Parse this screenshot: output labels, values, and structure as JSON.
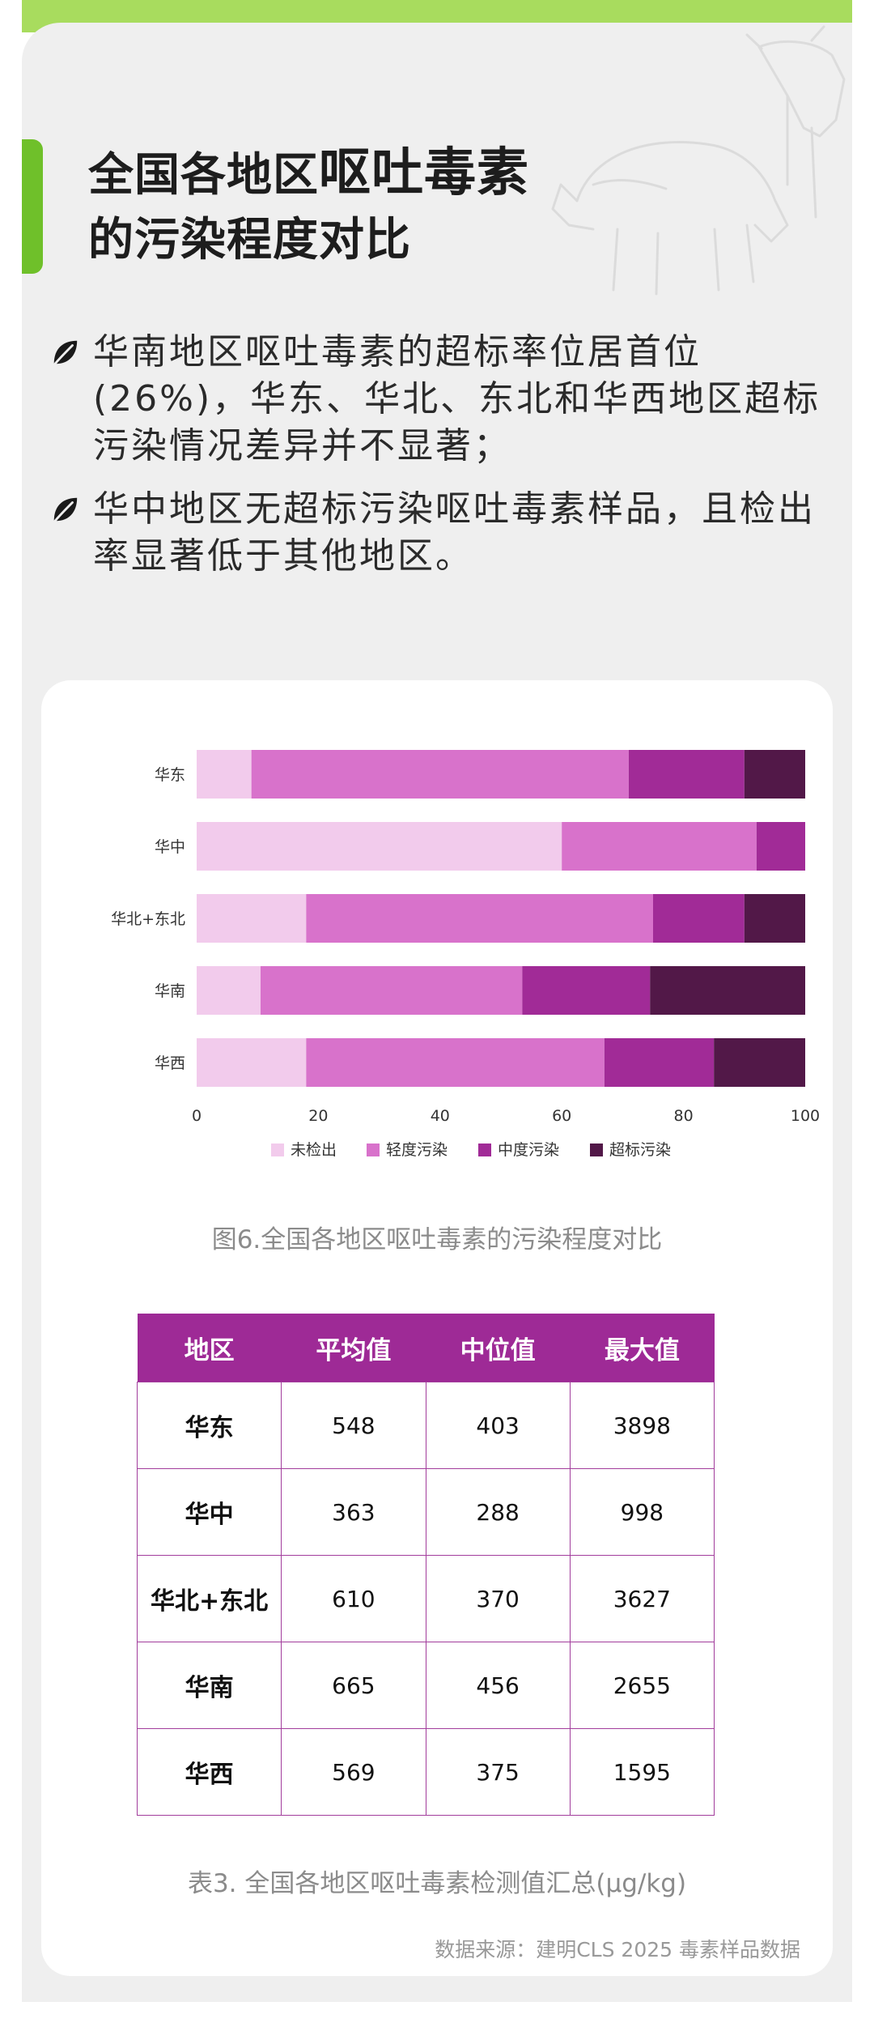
{
  "header": {
    "title_line1_plain": "全国各地区",
    "title_line1_emph": "呕吐毒素",
    "title_line2": "的污染程度对比"
  },
  "bullets": [
    "华南地区呕吐毒素的超标率位居首位(26%)，华东、华北、东北和华西地区超标污染情况差异并不显著；",
    "华中地区无超标污染呕吐毒素样品，且检出率显著低于其他地区。"
  ],
  "icons": {
    "bullet": "leaf-icon",
    "decoration": "farm-animals-illustration"
  },
  "chart_data": {
    "type": "bar",
    "orientation": "horizontal",
    "stacked": true,
    "categories": [
      "华东",
      "华中",
      "华北+东北",
      "华南",
      "华西"
    ],
    "series": [
      {
        "name": "未检出",
        "color": "#f2cbec",
        "values": [
          9,
          60,
          18,
          10.5,
          18
        ]
      },
      {
        "name": "轻度污染",
        "color": "#d872cb",
        "values": [
          62,
          32,
          57,
          43,
          49
        ]
      },
      {
        "name": "中度污染",
        "color": "#a12b97",
        "values": [
          19,
          8,
          15,
          21,
          18
        ]
      },
      {
        "name": "超标污染",
        "color": "#521848",
        "values": [
          10,
          0,
          10,
          25.5,
          15
        ]
      }
    ],
    "xlim": [
      0,
      100
    ],
    "xticks": [
      0,
      20,
      40,
      60,
      80,
      100
    ],
    "legend": "bottom",
    "grid": false,
    "caption": "图6.全国各地区呕吐毒素的污染程度对比"
  },
  "table": {
    "headers": [
      "地区",
      "平均值",
      "中位值",
      "最大值"
    ],
    "rows": [
      [
        "华东",
        "548",
        "403",
        "3898"
      ],
      [
        "华中",
        "363",
        "288",
        "998"
      ],
      [
        "华北+东北",
        "610",
        "370",
        "3627"
      ],
      [
        "华南",
        "665",
        "456",
        "2655"
      ],
      [
        "华西",
        "569",
        "375",
        "1595"
      ]
    ],
    "caption": "表3. 全国各地区呕吐毒素检测值汇总(μg/kg)"
  },
  "source": "数据来源：建明CLS 2025 毒素样品数据",
  "colors": {
    "accent_green": "#6fc02a",
    "top_band": "#a8dc5e",
    "table_header": "#9e2a96"
  }
}
